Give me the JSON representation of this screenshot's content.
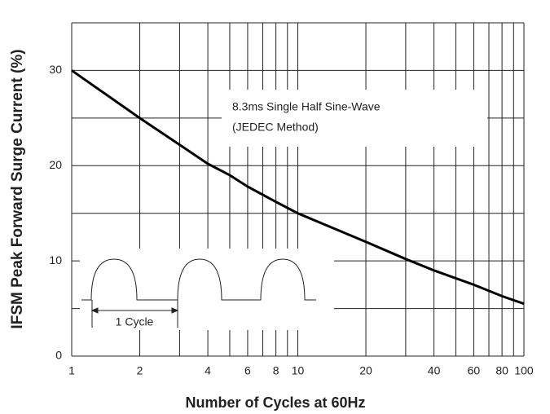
{
  "chart_data": {
    "type": "line",
    "x_label": "Number of Cycles at 60Hz",
    "y_label": "IFSM Peak Forward Surge Current (%)",
    "x": [
      1,
      2,
      3,
      4,
      5,
      6,
      8,
      10,
      20,
      30,
      40,
      60,
      80,
      100
    ],
    "values": [
      30,
      25,
      22.2,
      20.2,
      19,
      17.8,
      16.2,
      15,
      12,
      10.2,
      9,
      7.5,
      6.3,
      5.5
    ],
    "color": "#000000",
    "xscale": "log",
    "xlim": [
      1,
      100
    ],
    "xticks": [
      1,
      2,
      4,
      6,
      8,
      10,
      20,
      40,
      60,
      80,
      100
    ],
    "xgrid": [
      1,
      2,
      3,
      4,
      5,
      6,
      7,
      8,
      9,
      10,
      20,
      30,
      40,
      50,
      60,
      70,
      80,
      90,
      100
    ],
    "ylim": [
      0,
      35
    ],
    "yticks": [
      0,
      10,
      20,
      30
    ],
    "ygrid": [
      0,
      5,
      10,
      15,
      20,
      25,
      30,
      35
    ],
    "annotations": [
      "8.3ms Single Half Sine-Wave",
      "(JEDEC Method)",
      "1 Cycle"
    ]
  }
}
